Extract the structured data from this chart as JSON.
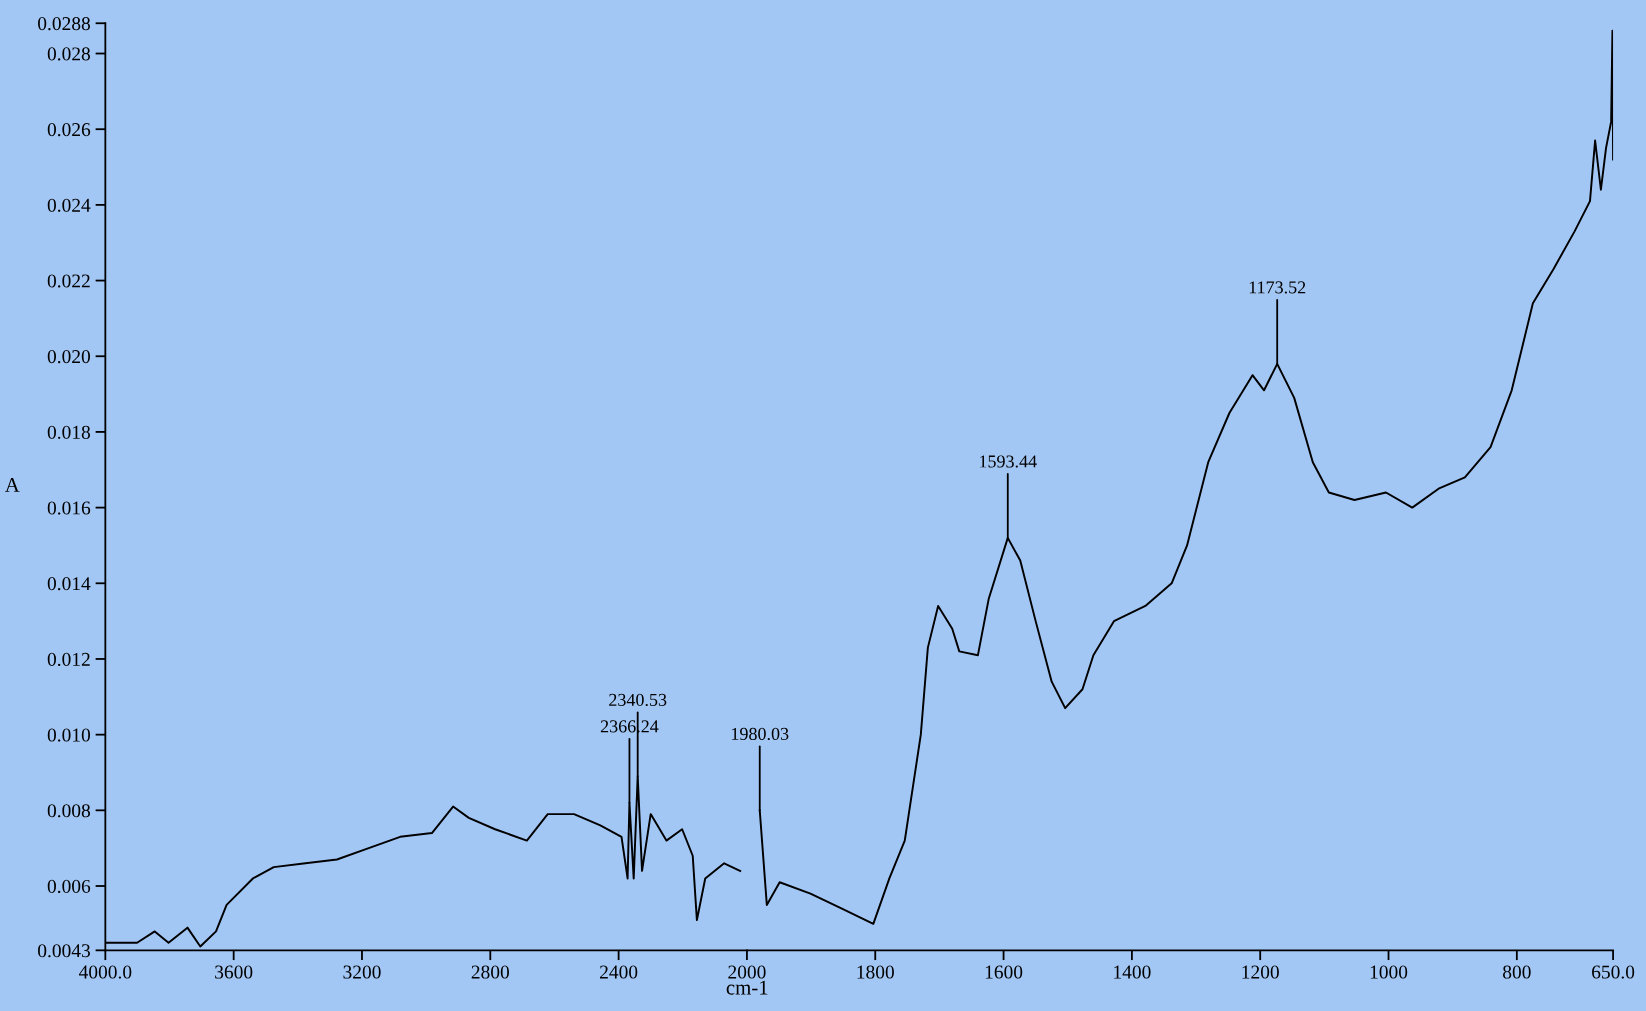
{
  "chart_data": [
    {
      "type": "line",
      "xlabel": "cm-1",
      "ylabel": "A",
      "series": [
        {
          "color": "#000000",
          "x": [
            4000,
            3901,
            3846,
            3803,
            3744,
            3704,
            3655,
            3622,
            3540,
            3475,
            3376,
            3278,
            3179,
            3081,
            2982,
            2916,
            2867,
            2785,
            2686,
            2621,
            2539,
            2457,
            2391,
            2372,
            2366.24,
            2353,
            2340.53,
            2327,
            2300,
            2251,
            2202,
            2169,
            2156,
            2130,
            2071,
            2021
          ],
          "values": [
            0.0045,
            0.0045,
            0.0048,
            0.0045,
            0.0049,
            0.0044,
            0.0048,
            0.0055,
            0.0062,
            0.0065,
            0.0066,
            0.0067,
            0.007,
            0.0073,
            0.0074,
            0.0081,
            0.0078,
            0.0075,
            0.0072,
            0.0079,
            0.0079,
            0.0076,
            0.0073,
            0.0062,
            0.0082,
            0.0062,
            0.0089,
            0.0064,
            0.0079,
            0.0072,
            0.0075,
            0.0068,
            0.0051,
            0.0062,
            0.0066,
            0.0064
          ]
        }
      ],
      "xlim": [
        4000,
        2000
      ],
      "xticks": [
        {
          "value": 4000,
          "label": "4000.0"
        },
        3600,
        3200,
        2800,
        2400
      ],
      "ylim": [
        0.0043,
        0.0288
      ],
      "yticks": [
        0.0043,
        0.006,
        0.008,
        {
          "value": 0.01,
          "label": "0.010"
        },
        0.012,
        0.014,
        0.016,
        0.018,
        {
          "value": 0.02,
          "label": "0.020"
        },
        0.022,
        0.024,
        0.026,
        0.028,
        0.0288
      ],
      "annotations": [
        {
          "text": "2366.24",
          "x": 2366.24,
          "y": 0.0082
        },
        {
          "text": "2340.53",
          "x": 2340.53,
          "y": 0.0089
        }
      ]
    },
    {
      "type": "line",
      "tick_labels": "x",
      "series": [
        {
          "color": "#000000",
          "x": [
            1980.03,
            1969,
            1949,
            1901,
            1852,
            1803,
            1778,
            1754,
            1729,
            1718,
            1702,
            1680,
            1669,
            1640,
            1623,
            1593.44,
            1574,
            1550,
            1525,
            1504,
            1477,
            1460,
            1428,
            1379,
            1338,
            1314,
            1281,
            1248,
            1212,
            1194,
            1173.52,
            1147,
            1118,
            1093,
            1053,
            1004,
            963,
            922,
            881,
            841,
            808,
            775,
            743,
            710,
            686,
            678,
            669,
            661,
            653,
            651,
            650
          ],
          "values": [
            0.008,
            0.0055,
            0.0061,
            0.0058,
            0.0054,
            0.005,
            0.0062,
            0.0072,
            0.01,
            0.0123,
            0.0134,
            0.0128,
            0.0122,
            0.0121,
            0.0136,
            0.0152,
            0.0146,
            0.013,
            0.0114,
            0.0107,
            0.0112,
            0.0121,
            0.013,
            0.0134,
            0.014,
            0.015,
            0.0172,
            0.0185,
            0.0195,
            0.0191,
            0.0198,
            0.0189,
            0.0172,
            0.0164,
            0.0162,
            0.0164,
            0.016,
            0.0165,
            0.0168,
            0.0176,
            0.0191,
            0.0214,
            0.0223,
            0.0233,
            0.0241,
            0.0257,
            0.0244,
            0.0255,
            0.0262,
            0.0286,
            0.0252
          ]
        }
      ],
      "xlim": [
        2000,
        650
      ],
      "xticks": [
        2000,
        1800,
        1600,
        1400,
        1200,
        1000,
        800,
        {
          "value": 650,
          "label": "650.0"
        }
      ],
      "ylim": [
        0.0043,
        0.0288
      ],
      "annotations": [
        {
          "text": "1980.03",
          "x": 1980.03,
          "y": 0.008
        },
        {
          "text": "1593.44",
          "x": 1593.44,
          "y": 0.0152
        },
        {
          "text": "1173.52",
          "x": 1173.52,
          "y": 0.0198
        }
      ]
    }
  ]
}
